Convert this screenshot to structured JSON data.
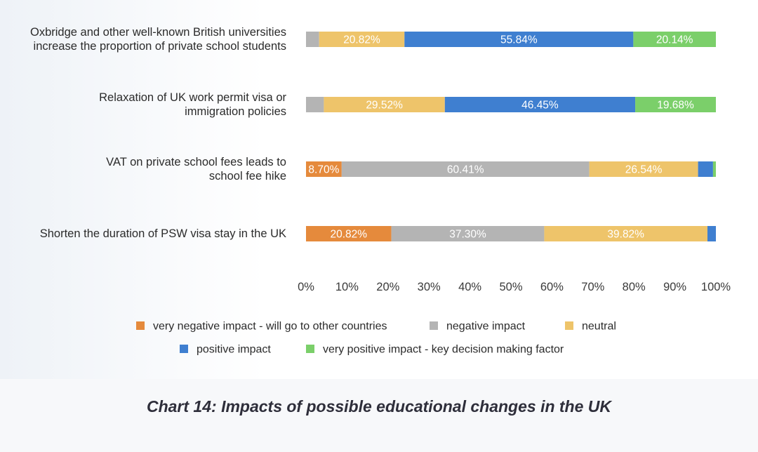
{
  "caption": "Chart 14: Impacts of possible educational changes in the UK",
  "chart_data": {
    "type": "bar",
    "orientation": "horizontal",
    "stacked": true,
    "percent": true,
    "xlim": [
      0,
      100
    ],
    "ticks": [
      "0%",
      "10%",
      "20%",
      "30%",
      "40%",
      "50%",
      "60%",
      "70%",
      "80%",
      "90%",
      "100%"
    ],
    "grid": false,
    "legend_position": "bottom",
    "categories": [
      [
        "Oxbridge and other well-known British universities",
        "increase the proportion of private school students"
      ],
      [
        "Relaxation of UK work permit visa or",
        "immigration policies"
      ],
      [
        "VAT on private school fees leads to",
        "school fee hike"
      ],
      [
        "Shorten the duration of PSW visa stay in the UK"
      ]
    ],
    "series": [
      {
        "name": "very negative impact - will go to other countries",
        "color": "#e58a3c",
        "values": [
          0,
          0,
          8.7,
          20.82
        ],
        "labels": [
          "",
          "",
          "8.70%",
          "20.82%"
        ]
      },
      {
        "name": "negative impact",
        "color": "#b4b4b4",
        "values": [
          3.2,
          4.35,
          60.41,
          37.3
        ],
        "labels": [
          "",
          "",
          "60.41%",
          "37.30%"
        ]
      },
      {
        "name": "neutral",
        "color": "#eec46a",
        "values": [
          20.82,
          29.52,
          26.54,
          39.82
        ],
        "labels": [
          "20.82%",
          "29.52%",
          "26.54%",
          "39.82%"
        ]
      },
      {
        "name": "positive impact",
        "color": "#3f7fd0",
        "values": [
          55.84,
          46.45,
          3.65,
          2.06
        ],
        "labels": [
          "55.84%",
          "46.45%",
          "",
          ""
        ]
      },
      {
        "name": "very positive impact - key decision making factor",
        "color": "#7bcf6a",
        "values": [
          20.14,
          19.68,
          0.7,
          0
        ],
        "labels": [
          "20.14%",
          "19.68%",
          "",
          ""
        ]
      }
    ]
  }
}
